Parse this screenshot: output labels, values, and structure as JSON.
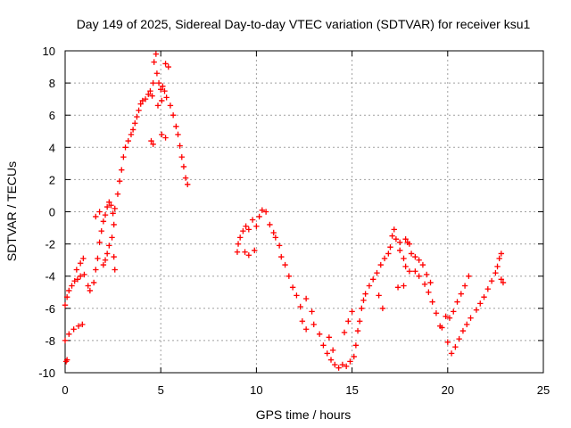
{
  "chart_data": {
    "type": "scatter",
    "title": "Day 149 of 2025, Sidereal Day-to-day VTEC variation (SDTVAR) for receiver ksu1",
    "xlabel": "GPS time / hours",
    "ylabel": "SDTVAR / TECUs",
    "xlim": [
      0,
      25
    ],
    "ylim": [
      -10,
      10
    ],
    "xticks": [
      "0",
      "5",
      "10",
      "15",
      "20",
      "25"
    ],
    "yticks": [
      "-10",
      "-8",
      "-6",
      "-4",
      "-2",
      "0",
      "2",
      "4",
      "6",
      "8",
      "10"
    ],
    "grid": true,
    "marker": "+",
    "marker_color": "#ff0000",
    "series": [
      {
        "name": "SDTVAR",
        "points": [
          [
            0.0,
            -5.8
          ],
          [
            0.1,
            -5.3
          ],
          [
            0.2,
            -4.9
          ],
          [
            0.35,
            -4.6
          ],
          [
            0.5,
            -4.3
          ],
          [
            0.65,
            -4.2
          ],
          [
            0.8,
            -4.0
          ],
          [
            1.0,
            -3.9
          ],
          [
            0.6,
            -3.6
          ],
          [
            0.8,
            -3.2
          ],
          [
            0.95,
            -2.9
          ],
          [
            0.0,
            -8.0
          ],
          [
            0.2,
            -7.6
          ],
          [
            0.45,
            -7.3
          ],
          [
            0.7,
            -7.1
          ],
          [
            0.9,
            -7.0
          ],
          [
            0.05,
            -9.3
          ],
          [
            0.1,
            -9.2
          ],
          [
            1.2,
            -4.6
          ],
          [
            1.3,
            -4.9
          ],
          [
            1.5,
            -4.4
          ],
          [
            1.6,
            -3.6
          ],
          [
            1.7,
            -2.9
          ],
          [
            1.8,
            -1.9
          ],
          [
            1.9,
            -1.2
          ],
          [
            2.0,
            -0.6
          ],
          [
            2.1,
            -0.2
          ],
          [
            2.2,
            0.3
          ],
          [
            2.3,
            0.6
          ],
          [
            2.4,
            0.4
          ],
          [
            1.6,
            -0.3
          ],
          [
            1.8,
            0.0
          ],
          [
            2.0,
            -3.3
          ],
          [
            2.1,
            -3.0
          ],
          [
            2.2,
            -2.6
          ],
          [
            2.3,
            -2.1
          ],
          [
            2.45,
            -1.6
          ],
          [
            2.55,
            -2.8
          ],
          [
            2.6,
            -3.6
          ],
          [
            2.55,
            -0.8
          ],
          [
            2.5,
            -0.1
          ],
          [
            2.6,
            0.2
          ],
          [
            2.75,
            1.1
          ],
          [
            2.85,
            1.9
          ],
          [
            2.95,
            2.6
          ],
          [
            3.05,
            3.4
          ],
          [
            3.15,
            4.0
          ],
          [
            3.3,
            4.4
          ],
          [
            3.45,
            4.8
          ],
          [
            3.55,
            5.1
          ],
          [
            3.65,
            5.5
          ],
          [
            3.75,
            5.9
          ],
          [
            3.85,
            6.3
          ],
          [
            3.95,
            6.7
          ],
          [
            4.05,
            6.9
          ],
          [
            4.2,
            7.0
          ],
          [
            4.35,
            7.3
          ],
          [
            4.45,
            7.5
          ],
          [
            4.55,
            7.2
          ],
          [
            4.6,
            8.0
          ],
          [
            4.65,
            9.3
          ],
          [
            4.75,
            9.8
          ],
          [
            4.8,
            8.6
          ],
          [
            4.9,
            8.0
          ],
          [
            5.0,
            7.6
          ],
          [
            5.1,
            7.8
          ],
          [
            5.2,
            7.5
          ],
          [
            5.05,
            6.9
          ],
          [
            4.85,
            6.6
          ],
          [
            5.25,
            9.2
          ],
          [
            5.4,
            9.0
          ],
          [
            4.5,
            4.4
          ],
          [
            4.6,
            4.2
          ],
          [
            5.05,
            4.8
          ],
          [
            5.25,
            4.6
          ],
          [
            5.3,
            7.1
          ],
          [
            5.5,
            6.6
          ],
          [
            5.65,
            6.0
          ],
          [
            5.8,
            5.3
          ],
          [
            5.9,
            4.8
          ],
          [
            6.0,
            4.1
          ],
          [
            6.1,
            3.4
          ],
          [
            6.2,
            2.8
          ],
          [
            6.3,
            2.1
          ],
          [
            6.4,
            1.7
          ],
          [
            9.0,
            -2.5
          ],
          [
            9.05,
            -2.0
          ],
          [
            9.15,
            -1.6
          ],
          [
            9.3,
            -1.2
          ],
          [
            9.45,
            -0.9
          ],
          [
            9.6,
            -1.1
          ],
          [
            9.4,
            -2.5
          ],
          [
            9.6,
            -2.7
          ],
          [
            9.9,
            -2.4
          ],
          [
            9.8,
            -0.5
          ],
          [
            10.0,
            -0.9
          ],
          [
            10.15,
            -0.3
          ],
          [
            10.3,
            0.1
          ],
          [
            10.5,
            0.0
          ],
          [
            10.7,
            -0.8
          ],
          [
            10.9,
            -1.3
          ],
          [
            11.0,
            -1.6
          ],
          [
            11.2,
            -2.1
          ],
          [
            11.3,
            -2.8
          ],
          [
            11.5,
            -3.3
          ],
          [
            11.7,
            -4.0
          ],
          [
            11.9,
            -4.7
          ],
          [
            12.1,
            -5.2
          ],
          [
            12.3,
            -5.9
          ],
          [
            12.6,
            -5.4
          ],
          [
            12.4,
            -6.8
          ],
          [
            12.6,
            -7.3
          ],
          [
            12.9,
            -6.2
          ],
          [
            13.0,
            -7.0
          ],
          [
            13.3,
            -7.6
          ],
          [
            13.5,
            -8.3
          ],
          [
            13.7,
            -8.8
          ],
          [
            13.9,
            -9.2
          ],
          [
            14.1,
            -9.5
          ],
          [
            14.3,
            -9.7
          ],
          [
            14.5,
            -9.5
          ],
          [
            14.7,
            -9.6
          ],
          [
            14.9,
            -9.3
          ],
          [
            15.1,
            -9.0
          ],
          [
            15.2,
            -8.3
          ],
          [
            15.3,
            -7.4
          ],
          [
            15.4,
            -6.8
          ],
          [
            15.5,
            -6.0
          ],
          [
            15.6,
            -5.5
          ],
          [
            13.8,
            -7.8
          ],
          [
            14.0,
            -8.6
          ],
          [
            14.6,
            -7.5
          ],
          [
            14.8,
            -6.8
          ],
          [
            15.0,
            -6.2
          ],
          [
            15.7,
            -5.1
          ],
          [
            15.9,
            -4.6
          ],
          [
            16.1,
            -4.2
          ],
          [
            16.3,
            -3.8
          ],
          [
            16.5,
            -3.3
          ],
          [
            16.7,
            -2.9
          ],
          [
            16.9,
            -2.6
          ],
          [
            17.0,
            -2.2
          ],
          [
            16.4,
            -5.2
          ],
          [
            16.6,
            -6.0
          ],
          [
            17.1,
            -1.5
          ],
          [
            17.2,
            -1.1
          ],
          [
            17.3,
            -1.7
          ],
          [
            17.5,
            -2.4
          ],
          [
            17.7,
            -2.9
          ],
          [
            17.8,
            -3.4
          ],
          [
            17.5,
            -1.9
          ],
          [
            17.8,
            -1.7
          ],
          [
            17.9,
            -1.9
          ],
          [
            18.0,
            -2.0
          ],
          [
            17.4,
            -4.7
          ],
          [
            17.7,
            -4.6
          ],
          [
            18.0,
            -3.7
          ],
          [
            18.3,
            -3.7
          ],
          [
            18.5,
            -4.0
          ],
          [
            18.8,
            -4.5
          ],
          [
            19.0,
            -5.0
          ],
          [
            19.2,
            -5.6
          ],
          [
            19.4,
            -6.3
          ],
          [
            19.6,
            -7.1
          ],
          [
            19.7,
            -7.2
          ],
          [
            18.1,
            -2.6
          ],
          [
            18.3,
            -2.8
          ],
          [
            18.5,
            -3.0
          ],
          [
            18.7,
            -3.3
          ],
          [
            18.9,
            -3.9
          ],
          [
            19.1,
            -4.4
          ],
          [
            19.9,
            -6.5
          ],
          [
            20.1,
            -6.6
          ],
          [
            20.3,
            -6.2
          ],
          [
            20.5,
            -5.6
          ],
          [
            20.7,
            -5.1
          ],
          [
            20.9,
            -4.6
          ],
          [
            21.1,
            -4.0
          ],
          [
            20.0,
            -8.1
          ],
          [
            20.2,
            -8.8
          ],
          [
            20.4,
            -8.4
          ],
          [
            20.6,
            -7.9
          ],
          [
            20.8,
            -7.4
          ],
          [
            21.0,
            -7.0
          ],
          [
            21.2,
            -6.6
          ],
          [
            21.5,
            -6.1
          ],
          [
            21.7,
            -5.7
          ],
          [
            21.9,
            -5.3
          ],
          [
            22.1,
            -4.8
          ],
          [
            22.3,
            -4.3
          ],
          [
            22.5,
            -3.8
          ],
          [
            22.6,
            -3.4
          ],
          [
            22.7,
            -2.9
          ],
          [
            22.8,
            -2.6
          ],
          [
            22.8,
            -4.2
          ],
          [
            22.9,
            -4.4
          ]
        ]
      }
    ]
  }
}
